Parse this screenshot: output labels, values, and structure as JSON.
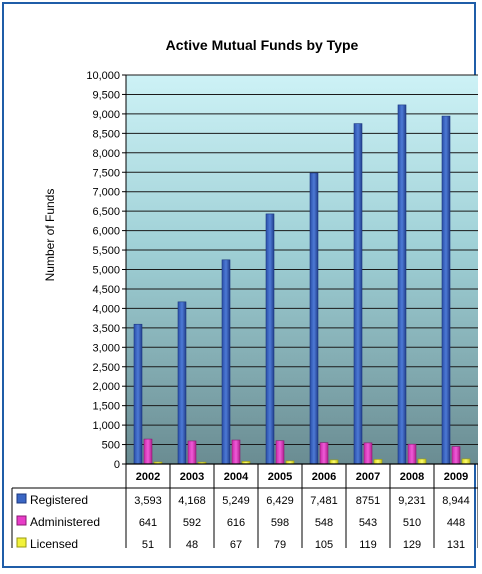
{
  "chart_data": {
    "type": "bar",
    "title": "Active Mutual Funds by Type",
    "ylabel": "Number of Funds",
    "xlabel": "",
    "ylim": [
      0,
      10000
    ],
    "ytick_step": 500,
    "grid": true,
    "legend": "data-table",
    "categories": [
      "2002",
      "2003",
      "2004",
      "2005",
      "2006",
      "2007",
      "2008",
      "2009"
    ],
    "series": [
      {
        "name": "Registered",
        "color": "#3a66c4",
        "values": [
          3593,
          4168,
          5249,
          6429,
          7481,
          8751,
          9231,
          8944
        ],
        "labels": [
          "3,593",
          "4,168",
          "5,249",
          "6,429",
          "7,481",
          "8751",
          "9,231",
          "8,944"
        ]
      },
      {
        "name": "Administered",
        "color": "#e83cc8",
        "values": [
          641,
          592,
          616,
          598,
          548,
          543,
          510,
          448
        ],
        "labels": [
          "641",
          "592",
          "616",
          "598",
          "548",
          "543",
          "510",
          "448"
        ]
      },
      {
        "name": "Licensed",
        "color": "#f2f23a",
        "values": [
          51,
          48,
          67,
          79,
          105,
          119,
          129,
          131
        ],
        "labels": [
          "51",
          "48",
          "67",
          "79",
          "105",
          "119",
          "129",
          "131"
        ]
      }
    ]
  }
}
